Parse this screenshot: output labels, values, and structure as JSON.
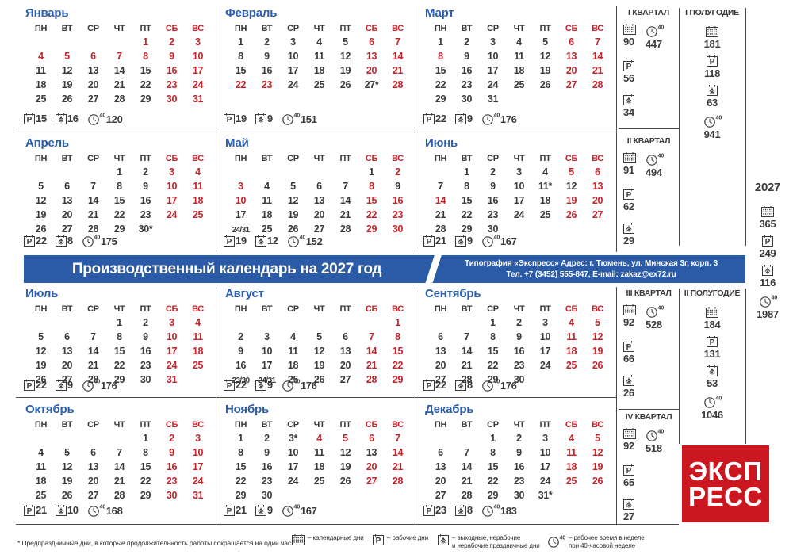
{
  "banner": {
    "title": "Производственный календарь на 2027 год",
    "info_line1": "Типография «Экспресс» Адрес: г. Тюмень, ул. Минская 3г, корп. 3",
    "info_line2": "Тел. +7 (3452) 555-847, E-mail: zakaz@ex72.ru"
  },
  "colors": {
    "accent_blue": "#2b5aa7",
    "month_title_blue": "#2b5fae",
    "holiday_red": "#c4242c",
    "ink": "#3a3a3a",
    "logo_red": "#cb171f"
  },
  "weekdays": [
    "ПН",
    "ВТ",
    "СР",
    "ЧТ",
    "ПТ",
    "СБ",
    "ВС"
  ],
  "months": [
    {
      "name": "Январь",
      "work": "15",
      "off": "16",
      "hours": "120",
      "weeks": [
        [
          "",
          "",
          "",
          "",
          "!1",
          "!2",
          "!3"
        ],
        [
          "!4",
          "!5",
          "!6",
          "!7",
          "!8",
          "!9",
          "!10"
        ],
        [
          "11",
          "12",
          "13",
          "14",
          "15",
          "!16",
          "!17"
        ],
        [
          "18",
          "19",
          "20",
          "21",
          "22",
          "!23",
          "!24"
        ],
        [
          "25",
          "26",
          "27",
          "28",
          "29",
          "!30",
          "!31"
        ]
      ]
    },
    {
      "name": "Февраль",
      "work": "19",
      "off": "9",
      "hours": "151",
      "weeks": [
        [
          "1",
          "2",
          "3",
          "4",
          "5",
          "!6",
          "!7"
        ],
        [
          "8",
          "9",
          "10",
          "11",
          "12",
          "!13",
          "!14"
        ],
        [
          "15",
          "16",
          "17",
          "18",
          "19",
          "!20",
          "!21"
        ],
        [
          "!22",
          "!23",
          "24",
          "25",
          "26",
          "27*",
          "!28"
        ]
      ]
    },
    {
      "name": "Март",
      "work": "22",
      "off": "9",
      "hours": "176",
      "weeks": [
        [
          "1",
          "2",
          "3",
          "4",
          "5",
          "!6",
          "!7"
        ],
        [
          "!8",
          "9",
          "10",
          "11",
          "12",
          "!13",
          "!14"
        ],
        [
          "15",
          "16",
          "17",
          "18",
          "19",
          "!20",
          "!21"
        ],
        [
          "22",
          "23",
          "24",
          "25",
          "26",
          "!27",
          "!28"
        ],
        [
          "29",
          "30",
          "31",
          "",
          "",
          "",
          ""
        ]
      ]
    },
    {
      "name": "Апрель",
      "work": "22",
      "off": "8",
      "hours": "175",
      "weeks": [
        [
          "",
          "",
          "",
          "1",
          "2",
          "!3",
          "!4"
        ],
        [
          "5",
          "6",
          "7",
          "8",
          "9",
          "!10",
          "!11"
        ],
        [
          "12",
          "13",
          "14",
          "15",
          "16",
          "!17",
          "!18"
        ],
        [
          "19",
          "20",
          "21",
          "22",
          "23",
          "!24",
          "!25"
        ],
        [
          "26",
          "27",
          "28",
          "29",
          "30*",
          "",
          ""
        ]
      ]
    },
    {
      "name": "Май",
      "work": "19",
      "off": "12",
      "hours": "152",
      "weeks": [
        [
          "",
          "",
          "",
          "",
          "",
          "1",
          "!2"
        ],
        [
          "!3",
          "4",
          "5",
          "6",
          "7",
          "!8",
          "9"
        ],
        [
          "!10",
          "11",
          "12",
          "13",
          "14",
          "!15",
          "!16"
        ],
        [
          "17",
          "18",
          "19",
          "20",
          "21",
          "!22",
          "!23"
        ],
        [
          "24/31",
          "25",
          "26",
          "27",
          "28",
          "!29",
          "!30"
        ]
      ]
    },
    {
      "name": "Июнь",
      "work": "21",
      "off": "9",
      "hours": "167",
      "weeks": [
        [
          "",
          "1",
          "2",
          "3",
          "4",
          "!5",
          "!6"
        ],
        [
          "7",
          "8",
          "9",
          "10",
          "11*",
          "12",
          "!13"
        ],
        [
          "!14",
          "15",
          "16",
          "17",
          "18",
          "!19",
          "!20"
        ],
        [
          "21",
          "22",
          "23",
          "24",
          "25",
          "!26",
          "!27"
        ],
        [
          "28",
          "29",
          "30",
          "",
          "",
          "",
          ""
        ]
      ]
    },
    {
      "name": "Июль",
      "work": "22",
      "off": "9",
      "hours": "176",
      "weeks": [
        [
          "",
          "",
          "",
          "1",
          "2",
          "!3",
          "!4"
        ],
        [
          "5",
          "6",
          "7",
          "8",
          "9",
          "!10",
          "!11"
        ],
        [
          "12",
          "13",
          "14",
          "15",
          "16",
          "!17",
          "!18"
        ],
        [
          "19",
          "20",
          "21",
          "22",
          "23",
          "!24",
          "!25"
        ],
        [
          "26",
          "27",
          "28",
          "29",
          "30",
          "!31",
          ""
        ]
      ]
    },
    {
      "name": "Август",
      "work": "22",
      "off": "9",
      "hours": "176",
      "weeks": [
        [
          "",
          "",
          "",
          "",
          "",
          "",
          "!1"
        ],
        [
          "2",
          "3",
          "4",
          "5",
          "6",
          "!7",
          "!8"
        ],
        [
          "9",
          "10",
          "11",
          "12",
          "13",
          "!14",
          "!15"
        ],
        [
          "16",
          "17",
          "18",
          "19",
          "20",
          "!21",
          "!22"
        ],
        [
          "23/30",
          "24/31",
          "25",
          "26",
          "27",
          "!28",
          "!29"
        ]
      ]
    },
    {
      "name": "Сентябрь",
      "work": "22",
      "off": "8",
      "hours": "176",
      "weeks": [
        [
          "",
          "",
          "1",
          "2",
          "3",
          "!4",
          "!5"
        ],
        [
          "6",
          "7",
          "8",
          "9",
          "10",
          "!11",
          "!12"
        ],
        [
          "13",
          "14",
          "15",
          "16",
          "17",
          "!18",
          "!19"
        ],
        [
          "20",
          "21",
          "22",
          "23",
          "24",
          "!25",
          "!26"
        ],
        [
          "27",
          "28",
          "29",
          "30",
          "",
          "",
          ""
        ]
      ]
    },
    {
      "name": "Октябрь",
      "work": "21",
      "off": "10",
      "hours": "168",
      "weeks": [
        [
          "",
          "",
          "",
          "",
          "1",
          "!2",
          "!3"
        ],
        [
          "4",
          "5",
          "6",
          "7",
          "8",
          "!9",
          "!10"
        ],
        [
          "11",
          "12",
          "13",
          "14",
          "15",
          "!16",
          "!17"
        ],
        [
          "18",
          "19",
          "20",
          "21",
          "22",
          "!23",
          "!24"
        ],
        [
          "25",
          "26",
          "27",
          "28",
          "29",
          "!30",
          "!31"
        ]
      ]
    },
    {
      "name": "Ноябрь",
      "work": "21",
      "off": "9",
      "hours": "167",
      "weeks": [
        [
          "1",
          "2",
          "3*",
          "!4",
          "!5",
          "!6",
          "!7"
        ],
        [
          "8",
          "9",
          "10",
          "11",
          "12",
          "13",
          "!14"
        ],
        [
          "15",
          "16",
          "17",
          "18",
          "19",
          "!20",
          "!21"
        ],
        [
          "22",
          "23",
          "24",
          "25",
          "26",
          "!27",
          "!28"
        ],
        [
          "29",
          "30",
          "",
          "",
          "",
          "",
          ""
        ]
      ]
    },
    {
      "name": "Декабрь",
      "work": "23",
      "off": "8",
      "hours": "183",
      "weeks": [
        [
          "",
          "",
          "1",
          "2",
          "3",
          "!4",
          "!5"
        ],
        [
          "6",
          "7",
          "8",
          "9",
          "10",
          "!11",
          "!12"
        ],
        [
          "13",
          "14",
          "15",
          "16",
          "17",
          "!18",
          "!19"
        ],
        [
          "20",
          "21",
          "22",
          "23",
          "24",
          "!25",
          "!26"
        ],
        [
          "27",
          "28",
          "29",
          "30",
          "31*",
          "",
          ""
        ]
      ]
    }
  ],
  "quarters": [
    {
      "label": "I КВАРТАЛ",
      "days": "90",
      "hours": "447",
      "work": "56",
      "off": "34"
    },
    {
      "label": "II КВАРТАЛ",
      "days": "91",
      "hours": "494",
      "work": "62",
      "off": "29"
    },
    {
      "label": "III КВАРТАЛ",
      "days": "92",
      "hours": "528",
      "work": "66",
      "off": "26"
    },
    {
      "label": "IV КВАРТАЛ",
      "days": "92",
      "hours": "518",
      "work": "65",
      "off": "27"
    }
  ],
  "halfyears": [
    {
      "label": "I ПОЛУГОДИЕ",
      "days": "181",
      "work": "118",
      "off": "63",
      "hours": "941"
    },
    {
      "label": "II ПОЛУГОДИЕ",
      "days": "184",
      "work": "131",
      "off": "53",
      "hours": "1046"
    }
  ],
  "year": {
    "label": "2027",
    "days": "365",
    "work": "249",
    "off": "116",
    "hours": "1987"
  },
  "legend": {
    "footnote": "* Предпраздничные дни, в которые продолжительность работы сокращается на один час",
    "items": [
      {
        "icon": "calendar-days-icon",
        "text1": "– календарные дни",
        "text2": ""
      },
      {
        "icon": "working-days-icon",
        "text1": "– рабочие дни",
        "text2": ""
      },
      {
        "icon": "dayoff-icon",
        "text1": "– выходные, нерабочие",
        "text2": "и нерабочие праздничные дни"
      },
      {
        "icon": "hours-40-icon",
        "text1": "– рабочее время в неделе",
        "text2": "при 40-часовой неделе"
      }
    ]
  },
  "logo": {
    "line1": "ЭКСП",
    "line2": "РЕСС"
  }
}
